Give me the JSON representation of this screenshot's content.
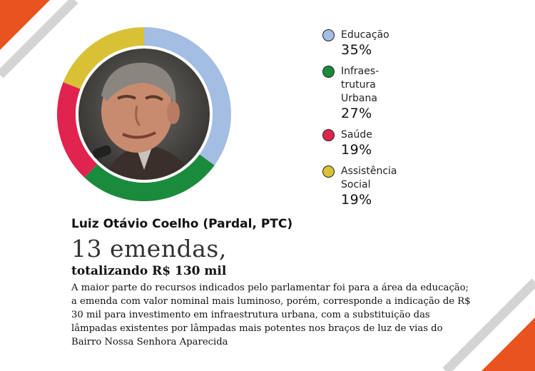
{
  "colors": {
    "accent_orange": "#e8531f",
    "stripe_gray": "#d4d4d4",
    "educacao": "#a3bde3",
    "infraestrutura": "#1a8a3c",
    "saude": "#e0244f",
    "assistencia": "#d9c136"
  },
  "chart_data": {
    "type": "donut",
    "categories": [
      "Educação",
      "Infraestrutura Urbana",
      "Saúde",
      "Assistência Social"
    ],
    "values": [
      35,
      27,
      19,
      19
    ],
    "unit": "%",
    "start": "top, clockwise",
    "center_image": "portrait-photo"
  },
  "legend": [
    {
      "label": "Educação",
      "value": "35%",
      "color": "#a3bde3"
    },
    {
      "label": "Infraes-\ntrutura\nUrbana",
      "value": "27%",
      "color": "#1a8a3c"
    },
    {
      "label": "Saúde",
      "value": "19%",
      "color": "#e0244f"
    },
    {
      "label": "Assistência\nSocial",
      "value": "19%",
      "color": "#d9c136"
    }
  ],
  "profile": {
    "name": "Luiz Otávio Coelho (Pardal, PTC)",
    "headline": "13 emendas,",
    "subhead": "totalizando R$ 130 mil",
    "body": "A maior parte do recursos indicados pelo parlamentar foi para a área da educação; a emenda com valor nominal mais luminoso, porém, corresponde a indicação de R$ 30 mil para investimento em infraestrutura urbana, com a substituição das lâmpadas existentes por lâmpadas mais potentes nos braços de luz de vias do Bairro Nossa Senhora Aparecida"
  }
}
